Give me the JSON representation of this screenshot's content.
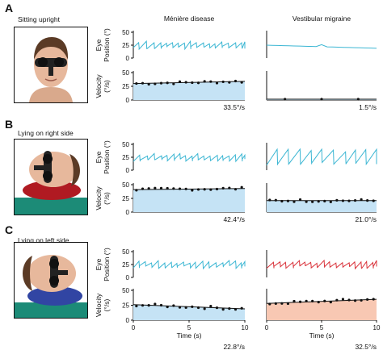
{
  "columns": [
    "Ménière disease",
    "Vestibular migraine"
  ],
  "panels": [
    {
      "letter": "A",
      "condition": "Sitting upright",
      "velocities": [
        "33.5°/s",
        "1.5°/s"
      ]
    },
    {
      "letter": "B",
      "condition": "Lying on right side",
      "velocities": [
        "42.4°/s",
        "21.0°/s"
      ]
    },
    {
      "letter": "C",
      "condition": "Lying on left side",
      "velocities": [
        "22.8°/s",
        "32.5°/s"
      ]
    }
  ],
  "axes": {
    "eye_label": [
      "Eye",
      "Position (°)"
    ],
    "vel_label": [
      "Velocity",
      "(°/s)"
    ],
    "eye_ticks": [
      "50",
      "25",
      "0"
    ],
    "vel_ticks": [
      "50",
      "25",
      "0"
    ],
    "time_ticks": [
      "0",
      "5",
      "10"
    ],
    "time_label": "Time (s)"
  },
  "colors": {
    "trace_cyan": "#3bb6d3",
    "trace_red": "#d9323a",
    "fill_blue": "#c5e3f5",
    "fill_salmon": "#f8c8b3",
    "pillow_red": "#b01a22",
    "pillow_blue": "#3145a3",
    "floor_teal": "#1c8b77"
  },
  "chart_data": {
    "type": "line",
    "x_range": [
      0,
      10
    ],
    "eye_ylim": [
      0,
      50
    ],
    "vel_ylim": [
      0,
      50
    ],
    "traces": [
      {
        "panel": "A",
        "column": "Ménière disease",
        "eye_color": "cyan",
        "vel_level": [
          30,
          34
        ],
        "velocity": "33.5°/s"
      },
      {
        "panel": "A",
        "column": "Vestibular migraine",
        "eye_color": "cyan",
        "vel_level": [
          1.5,
          1.5
        ],
        "velocity": "1.5°/s"
      },
      {
        "panel": "B",
        "column": "Ménière disease",
        "eye_color": "cyan",
        "vel_level": [
          41,
          43
        ],
        "velocity": "42.4°/s"
      },
      {
        "panel": "B",
        "column": "Vestibular migraine",
        "eye_color": "cyan",
        "vel_level": [
          21,
          21
        ],
        "velocity": "21.0°/s"
      },
      {
        "panel": "C",
        "column": "Ménière disease",
        "eye_color": "cyan",
        "vel_level": [
          26,
          19
        ],
        "velocity": "22.8°/s"
      },
      {
        "panel": "C",
        "column": "Vestibular migraine",
        "eye_color": "red",
        "vel_level": [
          28,
          35
        ],
        "velocity": "32.5°/s"
      }
    ]
  }
}
